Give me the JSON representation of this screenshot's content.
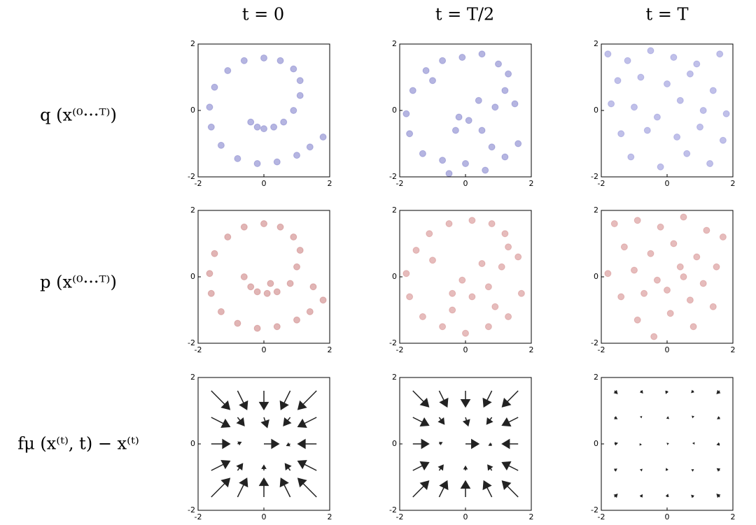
{
  "column_titles": [
    "t = 0",
    "t = T/2",
    "t = T"
  ],
  "row_labels": [
    "q (x⁽⁰···ᵀ⁾)",
    "p (x⁽⁰···ᵀ⁾)",
    "fμ (x⁽ᵗ⁾, t) − x⁽ᵗ⁾"
  ],
  "chart_data": [
    {
      "type": "scatter",
      "color": "#2a2aa8",
      "xlim": [
        -2,
        2
      ],
      "ylim": [
        -2,
        2
      ],
      "xticks": [
        -2,
        0,
        2
      ],
      "yticks": [
        -2,
        0,
        2
      ],
      "x": [
        -0.4,
        -0.2,
        0,
        0.3,
        0.6,
        0.9,
        1.1,
        1.1,
        0.9,
        0.5,
        0,
        -0.6,
        -1.1,
        -1.5,
        -1.65,
        -1.6,
        -1.3,
        -0.8,
        -0.2,
        0.4,
        1.0,
        1.4,
        1.8
      ],
      "y": [
        -0.35,
        -0.5,
        -0.55,
        -0.5,
        -0.35,
        0,
        0.45,
        0.9,
        1.25,
        1.5,
        1.58,
        1.5,
        1.2,
        0.7,
        0.1,
        -0.5,
        -1.05,
        -1.45,
        -1.6,
        -1.55,
        -1.35,
        -1.1,
        -0.8
      ]
    },
    {
      "type": "scatter",
      "color": "#2a2aa8",
      "xlim": [
        -2,
        2
      ],
      "ylim": [
        -2,
        2
      ],
      "xticks": [
        -2,
        0,
        2
      ],
      "yticks": [
        -2,
        0,
        2
      ],
      "x": [
        -0.3,
        0.1,
        0.5,
        0.9,
        1.2,
        1.3,
        1.0,
        0.5,
        -0.1,
        -0.7,
        -1.2,
        -1.6,
        -1.8,
        -1.7,
        -1.3,
        -0.7,
        0,
        0.6,
        1.2,
        1.6,
        -0.2,
        0.4,
        1.5,
        -1.0,
        0.8,
        -0.5
      ],
      "y": [
        -0.6,
        -0.3,
        -0.6,
        0.1,
        0.6,
        1.1,
        1.4,
        1.7,
        1.6,
        1.5,
        1.2,
        0.6,
        -0.1,
        -0.7,
        -1.3,
        -1.5,
        -1.6,
        -1.8,
        -1.4,
        -1.0,
        -0.2,
        0.3,
        0.2,
        0.9,
        -1.1,
        -1.9
      ]
    },
    {
      "type": "scatter",
      "color": "#4a4ac0",
      "xlim": [
        -2,
        2
      ],
      "ylim": [
        -2,
        2
      ],
      "xticks": [
        -2,
        0,
        2
      ],
      "yticks": [
        -2,
        0,
        2
      ],
      "x": [
        -1.8,
        -1.2,
        -0.5,
        0.2,
        0.9,
        1.6,
        -1.5,
        -0.8,
        0,
        0.7,
        1.4,
        -1.7,
        -1.0,
        -0.3,
        0.4,
        1.1,
        1.8,
        -1.4,
        -0.6,
        0.3,
        1.0,
        1.7,
        -1.1,
        0.6,
        -0.2,
        1.3
      ],
      "y": [
        1.7,
        1.5,
        1.8,
        1.6,
        1.4,
        1.7,
        0.9,
        1.0,
        0.8,
        1.1,
        0.6,
        0.2,
        0.1,
        -0.2,
        0.3,
        0,
        -0.1,
        -0.7,
        -0.6,
        -0.8,
        -0.5,
        -0.9,
        -1.4,
        -1.3,
        -1.7,
        -1.6
      ]
    },
    {
      "type": "scatter",
      "color": "#a82a2a",
      "xlim": [
        -2,
        2
      ],
      "ylim": [
        -2,
        2
      ],
      "xticks": [
        -2,
        0,
        2
      ],
      "yticks": [
        -2,
        0,
        2
      ],
      "x": [
        -0.4,
        -0.2,
        0.1,
        0.4,
        0.8,
        1.0,
        1.1,
        0.9,
        0.5,
        0,
        -0.6,
        -1.1,
        -1.5,
        -1.65,
        -1.6,
        -1.3,
        -0.8,
        -0.2,
        0.4,
        1.0,
        1.4,
        1.8,
        -0.6,
        1.5,
        0.2
      ],
      "y": [
        -0.3,
        -0.45,
        -0.5,
        -0.45,
        -0.2,
        0.3,
        0.8,
        1.2,
        1.5,
        1.6,
        1.5,
        1.2,
        0.7,
        0.1,
        -0.5,
        -1.05,
        -1.4,
        -1.55,
        -1.5,
        -1.3,
        -1.05,
        -0.7,
        0.0,
        -0.3,
        -0.2
      ]
    },
    {
      "type": "scatter",
      "color": "#b84040",
      "xlim": [
        -2,
        2
      ],
      "ylim": [
        -2,
        2
      ],
      "xticks": [
        -2,
        0,
        2
      ],
      "yticks": [
        -2,
        0,
        2
      ],
      "x": [
        -0.4,
        0.2,
        0.7,
        1.1,
        1.3,
        1.2,
        0.8,
        0.2,
        -0.5,
        -1.1,
        -1.5,
        -1.8,
        -1.7,
        -1.3,
        -0.7,
        0,
        0.7,
        1.3,
        1.7,
        -0.1,
        0.5,
        -1.0,
        1.6,
        -0.4,
        0.9
      ],
      "y": [
        -0.5,
        -0.6,
        -0.3,
        0.3,
        0.9,
        1.3,
        1.6,
        1.7,
        1.6,
        1.3,
        0.8,
        0.1,
        -0.6,
        -1.2,
        -1.5,
        -1.7,
        -1.5,
        -1.2,
        -0.5,
        -0.1,
        0.4,
        0.5,
        0.6,
        -1.0,
        -0.9
      ]
    },
    {
      "type": "scatter",
      "color": "#b84040",
      "xlim": [
        -2,
        2
      ],
      "ylim": [
        -2,
        2
      ],
      "xticks": [
        -2,
        0,
        2
      ],
      "yticks": [
        -2,
        0,
        2
      ],
      "x": [
        -1.6,
        -0.9,
        -0.2,
        0.5,
        1.2,
        1.7,
        -1.3,
        -0.5,
        0.2,
        0.9,
        1.5,
        -1.8,
        -1.0,
        -0.3,
        0.4,
        1.1,
        -1.4,
        -0.7,
        0,
        0.7,
        1.4,
        -0.9,
        0.1,
        0.8,
        -0.4,
        0.5
      ],
      "y": [
        1.6,
        1.7,
        1.5,
        1.8,
        1.4,
        1.2,
        0.9,
        0.7,
        1.0,
        0.6,
        0.3,
        0.1,
        0.2,
        -0.1,
        0.3,
        -0.2,
        -0.6,
        -0.5,
        -0.4,
        -0.7,
        -0.9,
        -1.3,
        -1.1,
        -1.5,
        -1.8,
        0.0
      ]
    },
    {
      "type": "quiver",
      "color": "#222222",
      "xlim": [
        -2,
        2
      ],
      "ylim": [
        -2,
        2
      ],
      "xticks": [
        -2,
        0,
        2
      ],
      "yticks": [
        -2,
        0,
        2
      ],
      "x": [
        -1.6,
        -0.8,
        0,
        0.8,
        1.6,
        -1.6,
        -0.8,
        0,
        0.8,
        1.6,
        -1.6,
        -0.8,
        0,
        0.8,
        1.6,
        -1.6,
        -0.8,
        0,
        0.8,
        1.6,
        -1.6,
        -0.8,
        0,
        0.8,
        1.6
      ],
      "y": [
        1.6,
        1.6,
        1.6,
        1.6,
        1.6,
        0.8,
        0.8,
        0.8,
        0.8,
        0.8,
        0,
        0,
        0,
        0,
        0,
        -0.8,
        -0.8,
        -0.8,
        -0.8,
        -0.8,
        -1.6,
        -1.6,
        -1.6,
        -1.6,
        -1.6
      ],
      "u": [
        0.56,
        0.28,
        0,
        -0.28,
        -0.56,
        0.56,
        0.2,
        0.1,
        -0.2,
        -0.56,
        0.56,
        0.1,
        0.45,
        -0.1,
        -0.56,
        0.56,
        0.15,
        0,
        -0.15,
        -0.56,
        0.56,
        0.28,
        0,
        -0.28,
        -0.56
      ],
      "v": [
        -0.56,
        -0.56,
        -0.56,
        -0.56,
        -0.56,
        -0.28,
        -0.25,
        -0.3,
        -0.25,
        -0.28,
        0,
        0.05,
        0,
        -0.05,
        0,
        0.28,
        0.2,
        0.15,
        0.2,
        0.28,
        0.56,
        0.56,
        0.56,
        0.56,
        0.56
      ]
    },
    {
      "type": "quiver",
      "color": "#222222",
      "xlim": [
        -2,
        2
      ],
      "ylim": [
        -2,
        2
      ],
      "xticks": [
        -2,
        0,
        2
      ],
      "yticks": [
        -2,
        0,
        2
      ],
      "x": [
        -1.6,
        -0.8,
        0,
        0.8,
        1.6,
        -1.6,
        -0.8,
        0,
        0.8,
        1.6,
        -1.6,
        -0.8,
        0,
        0.8,
        1.6,
        -1.6,
        -0.8,
        0,
        0.8,
        1.6,
        -1.6,
        -0.8,
        0,
        0.8,
        1.6
      ],
      "y": [
        1.6,
        1.6,
        1.6,
        1.6,
        1.6,
        0.8,
        0.8,
        0.8,
        0.8,
        0.8,
        0,
        0,
        0,
        0,
        0,
        -0.8,
        -0.8,
        -0.8,
        -0.8,
        -0.8,
        -1.6,
        -1.6,
        -1.6,
        -1.6,
        -1.6
      ],
      "u": [
        0.48,
        0.24,
        0,
        -0.24,
        -0.48,
        0.48,
        0.15,
        0.08,
        -0.15,
        -0.48,
        0.48,
        0.08,
        0.4,
        -0.08,
        -0.48,
        0.48,
        0.12,
        0,
        -0.12,
        -0.48,
        0.48,
        0.24,
        0,
        -0.24,
        -0.48
      ],
      "v": [
        -0.48,
        -0.48,
        -0.48,
        -0.48,
        -0.48,
        -0.24,
        -0.2,
        -0.25,
        -0.2,
        -0.24,
        0,
        0.04,
        0,
        -0.04,
        0,
        0.24,
        0.16,
        0.12,
        0.16,
        0.24,
        0.48,
        0.48,
        0.48,
        0.48,
        0.48
      ]
    },
    {
      "type": "quiver",
      "color": "#222222",
      "xlim": [
        -2,
        2
      ],
      "ylim": [
        -2,
        2
      ],
      "xticks": [
        -2,
        0,
        2
      ],
      "yticks": [
        -2,
        0,
        2
      ],
      "x": [
        -1.6,
        -0.8,
        0,
        0.8,
        1.6,
        -1.6,
        -0.8,
        0,
        0.8,
        1.6,
        -1.6,
        -0.8,
        0,
        0.8,
        1.6,
        -1.6,
        -0.8,
        0,
        0.8,
        1.6,
        -1.6,
        -0.8,
        0,
        0.8,
        1.6
      ],
      "y": [
        1.6,
        1.6,
        1.6,
        1.6,
        1.6,
        0.8,
        0.8,
        0.8,
        0.8,
        0.8,
        0,
        0,
        0,
        0,
        0,
        -0.8,
        -0.8,
        -0.8,
        -0.8,
        -0.8,
        -1.6,
        -1.6,
        -1.6,
        -1.6,
        -1.6
      ],
      "u": [
        0.08,
        0.05,
        -0.03,
        -0.05,
        -0.08,
        0.07,
        0.02,
        0.04,
        -0.03,
        -0.06,
        0.08,
        -0.02,
        0.03,
        0.02,
        -0.07,
        0.06,
        0.03,
        -0.02,
        -0.04,
        -0.07,
        0.08,
        0.04,
        0.02,
        -0.05,
        -0.08
      ],
      "v": [
        -0.08,
        -0.06,
        -0.07,
        -0.05,
        -0.08,
        -0.04,
        0.02,
        -0.03,
        0.03,
        -0.04,
        0.02,
        -0.03,
        0.01,
        0.03,
        -0.02,
        0.04,
        0.03,
        0.05,
        0.02,
        0.05,
        0.08,
        0.06,
        0.07,
        0.05,
        0.08
      ]
    }
  ]
}
